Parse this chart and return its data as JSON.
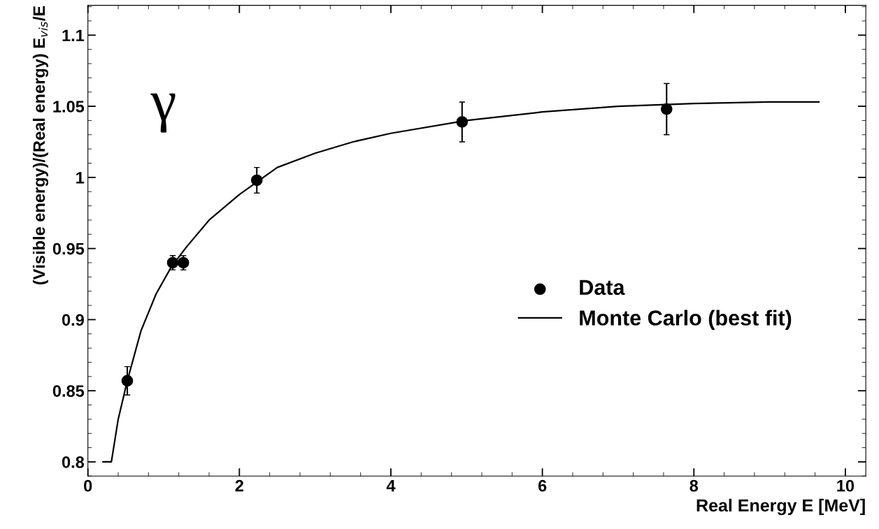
{
  "chart_data": {
    "type": "scatter",
    "xlabel": "Real Energy E [MeV]",
    "ylabel": "(Visible energy)/(Real energy) E$_{vis}$/E",
    "annotations": [
      "γ"
    ],
    "xlim": [
      0,
      10.27
    ],
    "ylim": [
      0.79,
      1.121
    ],
    "xticks": [
      0,
      2,
      4,
      6,
      8,
      10
    ],
    "yticks": [
      0.8,
      0.85,
      0.9,
      0.95,
      1,
      1.05,
      1.1
    ],
    "grid": false,
    "legend": "bottom right",
    "series": [
      {
        "name": "Data",
        "marker": "circle",
        "color": "#000000",
        "x": [
          0.52,
          1.12,
          1.26,
          2.23,
          4.94,
          7.64
        ],
        "values": [
          0.857,
          0.94,
          0.94,
          0.998,
          1.039,
          1.048
        ],
        "errors": [
          0.01,
          0.005,
          0.005,
          0.009,
          0.014,
          0.018
        ]
      },
      {
        "name": "Monte Carlo (best fit)",
        "type": "line",
        "marker": "none",
        "line_style": "solid",
        "color": "#000000",
        "x": [
          0.2,
          0.31,
          0.4,
          0.52,
          0.7,
          0.9,
          1.1,
          1.3,
          1.6,
          2.0,
          2.5,
          3,
          3.5,
          4,
          5,
          6,
          7,
          8,
          9,
          9.65
        ],
        "values": [
          0.8,
          0.8,
          0.83,
          0.857,
          0.892,
          0.918,
          0.937,
          0.951,
          0.97,
          0.988,
          1.007,
          1.017,
          1.025,
          1.031,
          1.04,
          1.046,
          1.05,
          1.052,
          1.053,
          1.053
        ]
      }
    ]
  }
}
